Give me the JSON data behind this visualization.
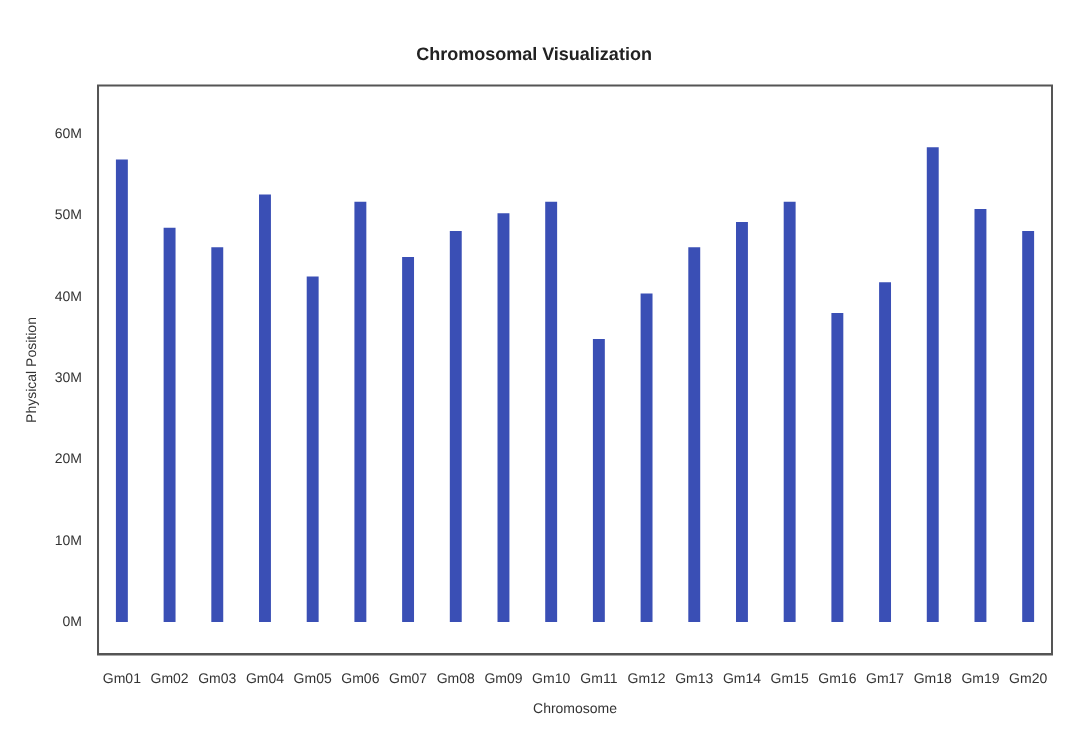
{
  "chart_data": {
    "type": "bar",
    "title": "Chromosomal Visualization",
    "xlabel": "Chromosome",
    "ylabel": "Physical Position",
    "categories": [
      "Gm01",
      "Gm02",
      "Gm03",
      "Gm04",
      "Gm05",
      "Gm06",
      "Gm07",
      "Gm08",
      "Gm09",
      "Gm10",
      "Gm11",
      "Gm12",
      "Gm13",
      "Gm14",
      "Gm15",
      "Gm16",
      "Gm17",
      "Gm18",
      "Gm19",
      "Gm20"
    ],
    "values": [
      56.9,
      48.5,
      46.1,
      52.6,
      42.5,
      51.7,
      44.9,
      48.1,
      50.3,
      51.7,
      34.8,
      40.4,
      46.1,
      49.2,
      51.7,
      38.0,
      41.8,
      58.4,
      50.8,
      48.1
    ],
    "color": "#3a4fb5",
    "ylim": [
      -4,
      66
    ],
    "yticks": [
      {
        "value": 0,
        "label": "0M"
      },
      {
        "value": 10,
        "label": "10M"
      },
      {
        "value": 20,
        "label": "20M"
      },
      {
        "value": 30,
        "label": "30M"
      },
      {
        "value": 40,
        "label": "40M"
      },
      {
        "value": 50,
        "label": "50M"
      },
      {
        "value": 60,
        "label": "60M"
      }
    ],
    "grid": false,
    "legend": false
  }
}
